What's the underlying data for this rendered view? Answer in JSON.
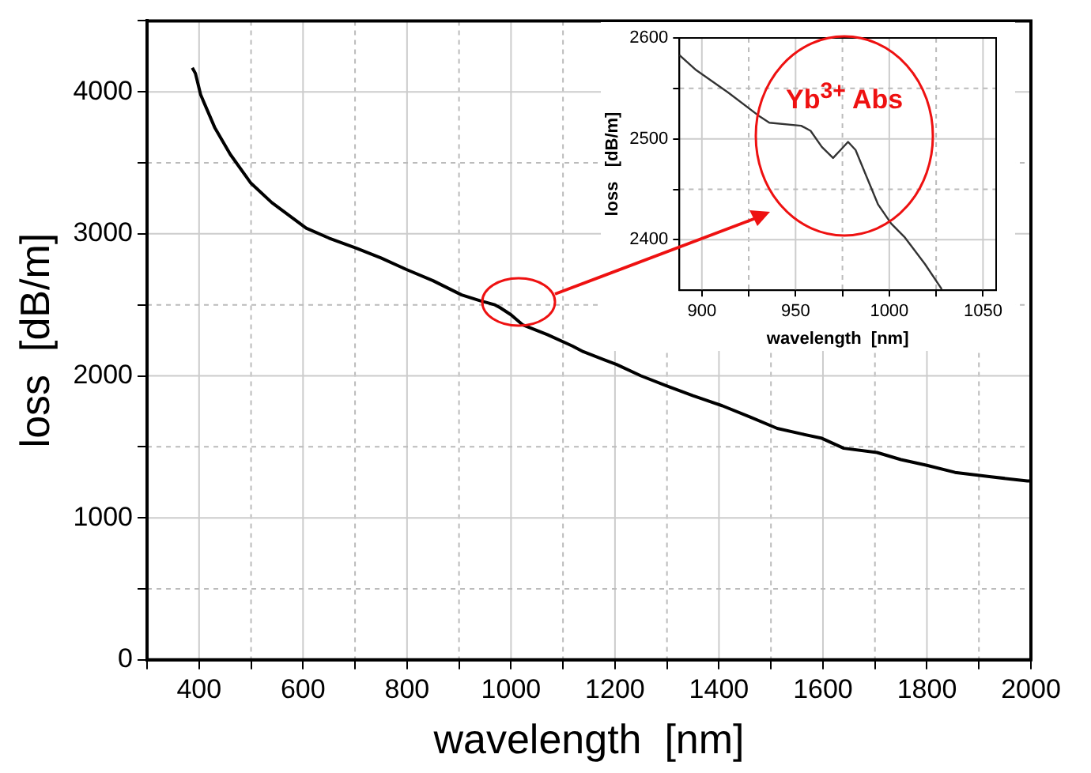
{
  "chart_data": [
    {
      "type": "line",
      "xlabel": "wavelength  [nm]",
      "ylabel": "loss  [dB/m]",
      "xlim": [
        300,
        2000
      ],
      "ylim": [
        0,
        4500
      ],
      "xticks": [
        {
          "value": 300,
          "label": null
        },
        400,
        {
          "value": 500,
          "label": null
        },
        600,
        {
          "value": 700,
          "label": null
        },
        800,
        {
          "value": 900,
          "label": null
        },
        1000,
        {
          "value": 1100,
          "label": null
        },
        1200,
        {
          "value": 1300,
          "label": null
        },
        1400,
        {
          "value": 1500,
          "label": null
        },
        1600,
        {
          "value": 1700,
          "label": null
        },
        1800,
        {
          "value": 1900,
          "label": null
        },
        2000
      ],
      "yticks": [
        0,
        {
          "value": 500,
          "label": null
        },
        1000,
        {
          "value": 1500,
          "label": null
        },
        2000,
        {
          "value": 2500,
          "label": null
        },
        3000,
        {
          "value": 3500,
          "label": null
        },
        4000,
        {
          "value": 4500,
          "label": null
        }
      ],
      "grid": true,
      "series": [
        {
          "color": "#000000",
          "x": [
            387,
            393,
            403,
            430,
            460,
            499,
            540,
            606,
            650,
            702,
            750,
            798,
            850,
            905,
            940,
            969,
            979,
            1000,
            1022,
            1070,
            1118,
            1139,
            1203,
            1250,
            1299,
            1350,
            1406,
            1460,
            1512,
            1560,
            1598,
            1640,
            1704,
            1750,
            1800,
            1854,
            1920,
            1993,
            2000
          ],
          "values": [
            4170,
            4130,
            3980,
            3750,
            3560,
            3360,
            3220,
            3040,
            2970,
            2900,
            2830,
            2750,
            2670,
            2570,
            2530,
            2500,
            2480,
            2430,
            2360,
            2290,
            2210,
            2170,
            2080,
            2000,
            1930,
            1860,
            1790,
            1710,
            1630,
            1590,
            1560,
            1490,
            1460,
            1410,
            1370,
            1320,
            1290,
            1260,
            1260
          ]
        }
      ]
    },
    {
      "type": "line",
      "xlabel": "wavelength  [nm]",
      "ylabel": "loss   [dB/m]",
      "xlim": [
        888,
        1057
      ],
      "ylim": [
        2350,
        2600
      ],
      "xticks": [
        900,
        {
          "value": 925,
          "label": null
        },
        950,
        {
          "value": 975,
          "label": null
        },
        1000,
        {
          "value": 1025,
          "label": null
        },
        1050
      ],
      "yticks": [
        2400,
        {
          "value": 2450,
          "label": null
        },
        2500,
        {
          "value": 2550,
          "label": null
        },
        2600
      ],
      "grid": true,
      "annotations": [
        "Yb$^{3+}$ Abs"
      ],
      "series": [
        {
          "color": "#333333",
          "x": [
            888,
            897,
            914,
            931,
            936,
            953,
            958,
            964,
            970,
            974,
            978,
            982,
            988,
            994,
            1001,
            1008,
            1019,
            1028
          ],
          "values": [
            2583,
            2568,
            2546,
            2522,
            2516,
            2513,
            2508,
            2492,
            2481,
            2489,
            2497,
            2489,
            2462,
            2435,
            2416,
            2403,
            2376,
            2351
          ]
        }
      ]
    }
  ]
}
